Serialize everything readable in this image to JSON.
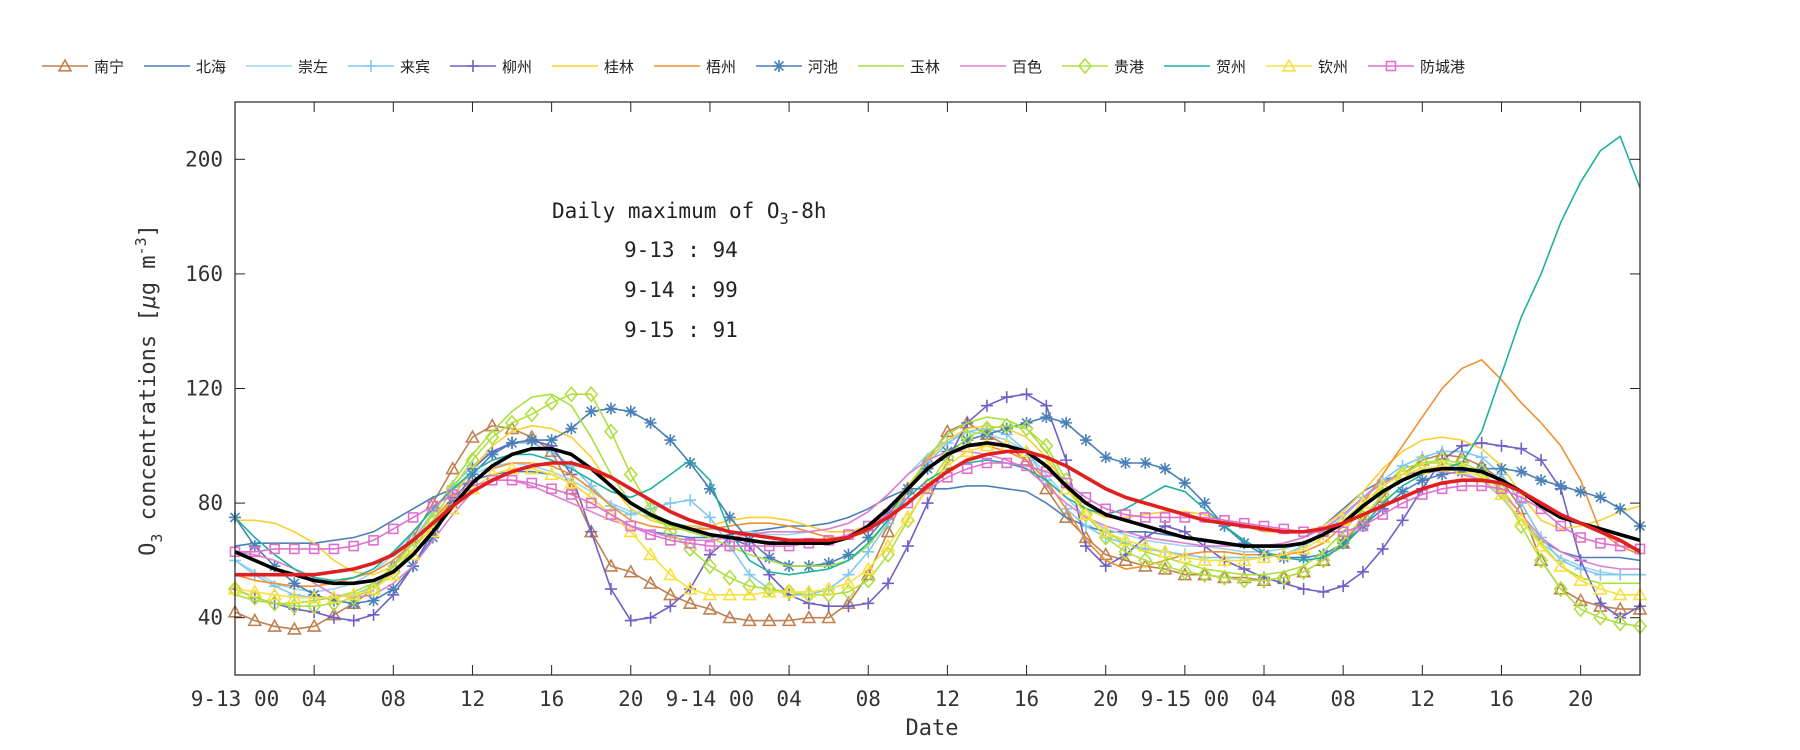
{
  "chart_data": {
    "type": "line",
    "xlabel": "Date",
    "ylabel": "O3 concentrations [μg m-3]",
    "ylabel_parts": {
      "main": "O",
      "sub": "3",
      "mid": " concentrations [",
      "mu": "μ",
      "g": "g m",
      "sup": "-3",
      "end": "]"
    },
    "ylim": [
      20,
      220
    ],
    "xlim": [
      0,
      71
    ],
    "yticks": [
      40,
      80,
      120,
      160,
      200
    ],
    "xticks": [
      {
        "hour": 0,
        "label": "9-13 00"
      },
      {
        "hour": 4,
        "label": "04"
      },
      {
        "hour": 8,
        "label": "08"
      },
      {
        "hour": 12,
        "label": "12"
      },
      {
        "hour": 16,
        "label": "16"
      },
      {
        "hour": 20,
        "label": "20"
      },
      {
        "hour": 24,
        "label": "9-14 00"
      },
      {
        "hour": 28,
        "label": "04"
      },
      {
        "hour": 32,
        "label": "08"
      },
      {
        "hour": 36,
        "label": "12"
      },
      {
        "hour": 40,
        "label": "16"
      },
      {
        "hour": 44,
        "label": "20"
      },
      {
        "hour": 48,
        "label": "9-15 00"
      },
      {
        "hour": 52,
        "label": "04"
      },
      {
        "hour": 56,
        "label": "08"
      },
      {
        "hour": 60,
        "label": "12"
      },
      {
        "hour": 64,
        "label": "16"
      },
      {
        "hour": 68,
        "label": "20"
      }
    ],
    "grid": false,
    "legend_position": "top",
    "annotation": {
      "title_pre": "Daily maximum of O",
      "title_sub": "3",
      "title_post": "-8h",
      "lines": [
        "9-13 : 94",
        "9-14 : 99",
        "9-15 : 91"
      ]
    },
    "series": [
      {
        "name": "南宁",
        "color": "#c08050",
        "marker": "triangle",
        "values": [
          42,
          39,
          37,
          36,
          37,
          41,
          45,
          50,
          58,
          68,
          80,
          92,
          103,
          107,
          106,
          103,
          98,
          85,
          70,
          58,
          56,
          52,
          48,
          45,
          43,
          40,
          39,
          39,
          39,
          40,
          40,
          45,
          55,
          70,
          85,
          95,
          105,
          108,
          104,
          100,
          95,
          85,
          75,
          68,
          62,
          60,
          58,
          57,
          55,
          55,
          54,
          54,
          53,
          54,
          56,
          60,
          66,
          74,
          82,
          90,
          95,
          97,
          96,
          93,
          88,
          78,
          60,
          50,
          46,
          44,
          43,
          43
        ]
      },
      {
        "name": "北海",
        "color": "#4a80b8",
        "marker": "none",
        "values": [
          65,
          66,
          66,
          66,
          66,
          67,
          68,
          70,
          74,
          78,
          82,
          85,
          88,
          90,
          91,
          91,
          90,
          87,
          82,
          76,
          72,
          70,
          69,
          68,
          68,
          69,
          70,
          71,
          72,
          72,
          73,
          75,
          78,
          82,
          85,
          85,
          85,
          86,
          86,
          85,
          84,
          80,
          75,
          72,
          70,
          70,
          70,
          69,
          68,
          67,
          66,
          65,
          65,
          66,
          68,
          72,
          78,
          84,
          88,
          90,
          92,
          92,
          91,
          88,
          82,
          74,
          67,
          63,
          61,
          61,
          61,
          60
        ]
      },
      {
        "name": "崇左",
        "color": "#9ad4f0",
        "marker": "none",
        "values": [
          60,
          56,
          52,
          50,
          49,
          50,
          52,
          56,
          62,
          70,
          78,
          85,
          90,
          93,
          94,
          93,
          91,
          88,
          84,
          80,
          77,
          75,
          73,
          72,
          71,
          70,
          70,
          69,
          69,
          70,
          71,
          73,
          77,
          83,
          90,
          97,
          102,
          105,
          104,
          102,
          98,
          90,
          82,
          75,
          71,
          69,
          67,
          66,
          65,
          65,
          64,
          63,
          63,
          64,
          66,
          70,
          76,
          82,
          87,
          90,
          92,
          92,
          91,
          88,
          82,
          74,
          66,
          61,
          58,
          56,
          55,
          55
        ]
      },
      {
        "name": "来宾",
        "color": "#80c8f0",
        "marker": "plus",
        "values": [
          60,
          55,
          51,
          48,
          47,
          47,
          48,
          51,
          58,
          67,
          77,
          86,
          93,
          98,
          101,
          101,
          98,
          93,
          86,
          79,
          76,
          78,
          80,
          81,
          75,
          65,
          55,
          50,
          48,
          48,
          50,
          55,
          63,
          73,
          84,
          94,
          101,
          105,
          106,
          104,
          98,
          88,
          78,
          72,
          68,
          66,
          64,
          63,
          62,
          61,
          61,
          61,
          61,
          62,
          65,
          69,
          75,
          82,
          88,
          93,
          96,
          98,
          98,
          96,
          90,
          80,
          68,
          60,
          57,
          55,
          55,
          55
        ]
      },
      {
        "name": "柳州",
        "color": "#7060c8",
        "marker": "plus",
        "values": [
          50,
          47,
          45,
          43,
          42,
          40,
          39,
          41,
          48,
          58,
          70,
          82,
          92,
          98,
          101,
          102,
          100,
          90,
          70,
          50,
          39,
          40,
          44,
          50,
          62,
          68,
          65,
          55,
          48,
          45,
          44,
          44,
          45,
          52,
          65,
          80,
          95,
          108,
          114,
          117,
          118,
          114,
          95,
          65,
          58,
          62,
          68,
          72,
          70,
          65,
          60,
          57,
          54,
          52,
          50,
          49,
          51,
          56,
          64,
          74,
          85,
          95,
          100,
          101,
          100,
          99,
          95,
          85,
          60,
          45,
          40,
          44
        ]
      },
      {
        "name": "桂林",
        "color": "#f8d030",
        "marker": "none",
        "values": [
          74,
          74,
          73,
          70,
          66,
          60,
          56,
          55,
          58,
          64,
          72,
          82,
          92,
          100,
          105,
          107,
          106,
          103,
          96,
          86,
          78,
          74,
          72,
          72,
          72,
          74,
          75,
          75,
          74,
          72,
          70,
          70,
          72,
          78,
          86,
          95,
          102,
          106,
          107,
          106,
          103,
          96,
          86,
          78,
          75,
          75,
          76,
          77,
          77,
          76,
          74,
          72,
          70,
          70,
          70,
          72,
          77,
          84,
          92,
          98,
          102,
          103,
          102,
          99,
          93,
          83,
          74,
          71,
          72,
          74,
          77,
          79
        ]
      },
      {
        "name": "梧州",
        "color": "#f09030",
        "marker": "none",
        "values": [
          55,
          53,
          52,
          51,
          51,
          52,
          54,
          56,
          60,
          66,
          74,
          82,
          88,
          92,
          94,
          94,
          93,
          90,
          85,
          79,
          74,
          72,
          71,
          71,
          71,
          72,
          73,
          73,
          72,
          70,
          68,
          68,
          70,
          76,
          84,
          92,
          98,
          100,
          100,
          98,
          95,
          88,
          78,
          67,
          60,
          57,
          58,
          60,
          62,
          63,
          63,
          62,
          62,
          62,
          63,
          66,
          72,
          80,
          90,
          100,
          110,
          120,
          127,
          130,
          123,
          115,
          108,
          100,
          88,
          70,
          65,
          62
        ]
      },
      {
        "name": "河池",
        "color": "#4a80b8",
        "marker": "star",
        "values": [
          75,
          65,
          58,
          52,
          48,
          46,
          45,
          46,
          50,
          58,
          68,
          80,
          90,
          97,
          101,
          102,
          102,
          106,
          112,
          113,
          112,
          108,
          102,
          94,
          85,
          75,
          67,
          61,
          58,
          58,
          59,
          62,
          68,
          76,
          85,
          92,
          98,
          102,
          104,
          106,
          108,
          110,
          108,
          102,
          96,
          94,
          94,
          92,
          87,
          80,
          72,
          66,
          62,
          61,
          61,
          62,
          66,
          72,
          78,
          84,
          88,
          90,
          91,
          92,
          92,
          91,
          88,
          86,
          84,
          82,
          78,
          72
        ]
      },
      {
        "name": "玉林",
        "color": "#a8e040",
        "marker": "none",
        "values": [
          48,
          46,
          45,
          45,
          46,
          47,
          49,
          52,
          58,
          66,
          76,
          87,
          97,
          105,
          112,
          117,
          118,
          114,
          103,
          90,
          80,
          75,
          72,
          70,
          68,
          65,
          62,
          60,
          58,
          58,
          58,
          60,
          65,
          74,
          85,
          96,
          104,
          108,
          110,
          109,
          106,
          98,
          86,
          76,
          70,
          66,
          63,
          61,
          59,
          57,
          56,
          55,
          55,
          56,
          58,
          63,
          70,
          78,
          86,
          92,
          94,
          94,
          93,
          90,
          85,
          76,
          66,
          58,
          54,
          52,
          52,
          52
        ]
      },
      {
        "name": "百色",
        "color": "#e080d0",
        "marker": "none",
        "values": [
          63,
          62,
          60,
          57,
          52,
          48,
          47,
          48,
          52,
          58,
          67,
          76,
          84,
          88,
          88,
          86,
          83,
          80,
          77,
          74,
          72,
          70,
          68,
          67,
          67,
          68,
          69,
          70,
          70,
          70,
          71,
          73,
          77,
          83,
          90,
          95,
          98,
          98,
          97,
          95,
          92,
          86,
          80,
          75,
          72,
          70,
          68,
          67,
          66,
          65,
          65,
          65,
          65,
          66,
          68,
          71,
          76,
          82,
          87,
          90,
          91,
          91,
          90,
          88,
          84,
          76,
          68,
          63,
          60,
          58,
          57,
          57
        ]
      },
      {
        "name": "贵港",
        "color": "#b0e040",
        "marker": "diamond",
        "values": [
          50,
          47,
          45,
          44,
          44,
          45,
          47,
          50,
          56,
          64,
          74,
          85,
          95,
          103,
          108,
          111,
          115,
          118,
          118,
          105,
          90,
          78,
          70,
          64,
          58,
          54,
          51,
          50,
          49,
          48,
          48,
          49,
          53,
          62,
          74,
          86,
          96,
          103,
          106,
          107,
          106,
          100,
          88,
          76,
          68,
          63,
          60,
          58,
          56,
          55,
          54,
          53,
          53,
          54,
          56,
          60,
          67,
          75,
          83,
          90,
          94,
          95,
          94,
          91,
          84,
          72,
          60,
          50,
          43,
          40,
          38,
          37
        ]
      },
      {
        "name": "贺州",
        "color": "#20b0a0",
        "marker": "none",
        "values": [
          75,
          68,
          62,
          57,
          54,
          53,
          54,
          57,
          63,
          70,
          78,
          85,
          91,
          95,
          97,
          97,
          95,
          92,
          88,
          84,
          82,
          85,
          90,
          95,
          88,
          70,
          60,
          56,
          55,
          56,
          57,
          60,
          66,
          74,
          82,
          88,
          92,
          94,
          95,
          94,
          92,
          88,
          82,
          78,
          76,
          78,
          82,
          86,
          84,
          78,
          72,
          67,
          63,
          61,
          60,
          61,
          65,
          72,
          80,
          86,
          90,
          92,
          94,
          105,
          125,
          145,
          160,
          178,
          192,
          203,
          208,
          190
        ]
      },
      {
        "name": "钦州",
        "color": "#f8e040",
        "marker": "triangle",
        "values": [
          50,
          49,
          48,
          47,
          47,
          47,
          48,
          50,
          55,
          62,
          70,
          78,
          85,
          90,
          92,
          92,
          90,
          87,
          82,
          76,
          70,
          62,
          55,
          50,
          48,
          48,
          48,
          49,
          49,
          49,
          50,
          52,
          57,
          65,
          75,
          85,
          93,
          98,
          100,
          100,
          98,
          93,
          85,
          76,
          70,
          67,
          65,
          63,
          61,
          60,
          60,
          60,
          61,
          62,
          64,
          68,
          74,
          80,
          86,
          90,
          92,
          93,
          92,
          89,
          83,
          74,
          65,
          58,
          53,
          50,
          48,
          48
        ]
      },
      {
        "name": "防城港",
        "color": "#e070d0",
        "marker": "square",
        "values": [
          63,
          63,
          64,
          64,
          64,
          64,
          65,
          67,
          71,
          75,
          79,
          83,
          86,
          88,
          88,
          87,
          85,
          83,
          80,
          76,
          72,
          69,
          67,
          66,
          65,
          65,
          65,
          65,
          65,
          66,
          67,
          69,
          72,
          76,
          80,
          85,
          89,
          92,
          94,
          94,
          93,
          91,
          87,
          82,
          78,
          76,
          75,
          75,
          75,
          75,
          74,
          73,
          72,
          71,
          70,
          70,
          70,
          72,
          76,
          80,
          83,
          85,
          86,
          86,
          85,
          82,
          78,
          72,
          68,
          66,
          65,
          64
        ]
      }
    ],
    "mean_lines": [
      {
        "color": "#000000",
        "values": [
          63,
          60,
          57,
          55,
          53,
          52,
          52,
          53,
          56,
          62,
          70,
          79,
          87,
          93,
          97,
          99,
          99,
          97,
          92,
          86,
          80,
          76,
          73,
          71,
          69,
          68,
          67,
          66,
          66,
          66,
          66,
          68,
          72,
          78,
          85,
          92,
          97,
          100,
          101,
          100,
          98,
          93,
          86,
          80,
          76,
          74,
          72,
          70,
          68,
          67,
          66,
          65,
          65,
          65,
          66,
          69,
          73,
          79,
          84,
          88,
          91,
          92,
          92,
          91,
          88,
          84,
          79,
          75,
          73,
          71,
          69,
          67
        ]
      },
      {
        "color": "#e02020",
        "values": [
          55,
          55,
          55,
          55,
          55,
          56,
          57,
          59,
          62,
          67,
          73,
          79,
          84,
          88,
          91,
          93,
          94,
          94,
          92,
          89,
          85,
          81,
          77,
          74,
          72,
          70,
          69,
          68,
          67,
          67,
          67,
          68,
          71,
          75,
          80,
          86,
          91,
          95,
          97,
          98,
          98,
          96,
          93,
          89,
          85,
          82,
          80,
          78,
          76,
          74,
          73,
          72,
          71,
          70,
          70,
          71,
          73,
          76,
          79,
          82,
          85,
          87,
          88,
          88,
          87,
          84,
          80,
          76,
          73,
          70,
          67,
          63
        ]
      }
    ]
  }
}
